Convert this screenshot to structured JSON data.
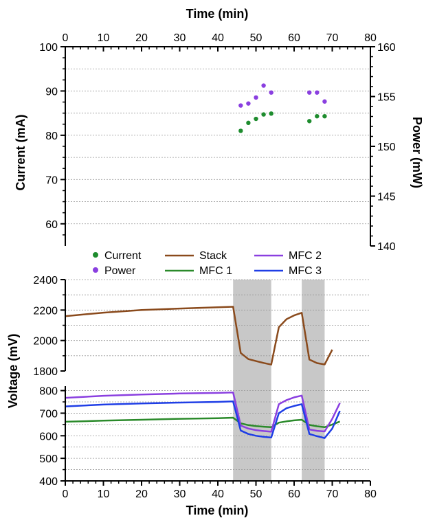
{
  "chart_data": [
    {
      "type": "scatter",
      "xlabel": "Time (min)",
      "ylabel": "Current (mA)",
      "y2label": "Power (mW)",
      "xlim": [
        0,
        80
      ],
      "ylim": [
        55,
        100
      ],
      "y2lim": [
        140,
        160
      ],
      "x_ticks": [
        "0",
        "10",
        "20",
        "30",
        "40",
        "50",
        "60",
        "70",
        "80"
      ],
      "y_ticks": [
        "60",
        "70",
        "80",
        "90",
        "100"
      ],
      "y2_ticks": [
        "140",
        "145",
        "150",
        "155",
        "160"
      ],
      "x_axis_position": "top",
      "grid": true,
      "legend_position": "bottom-left",
      "series": [
        {
          "name": "Current",
          "color": "#1e8c2e",
          "axis": "left",
          "x": [
            46,
            48,
            50,
            52,
            54,
            64,
            66,
            68
          ],
          "y": [
            81,
            82.8,
            83.7,
            84.7,
            84.9,
            83.2,
            84.3,
            84.3
          ]
        },
        {
          "name": "Power",
          "color": "#8a3fe0",
          "axis": "right",
          "x": [
            46,
            48,
            50,
            52,
            54,
            64,
            66,
            68
          ],
          "y": [
            154.1,
            154.3,
            154.9,
            156.1,
            155.4,
            155.4,
            155.4,
            154.5
          ]
        }
      ]
    },
    {
      "type": "line",
      "xlabel": "Time (min)",
      "ylabel": "Voltage (mV)",
      "xlim": [
        0,
        80
      ],
      "x_ticks": [
        "0",
        "10",
        "20",
        "30",
        "40",
        "50",
        "60",
        "70",
        "80"
      ],
      "y_ticks_upper": [
        "1800",
        "2000",
        "2200",
        "2400"
      ],
      "y_ticks_lower": [
        "400",
        "500",
        "600",
        "700",
        "800"
      ],
      "ylim_upper": [
        1800,
        2400
      ],
      "ylim_lower": [
        400,
        820
      ],
      "broken_y_axis": true,
      "grid": true,
      "legend_position": "top",
      "shaded_x_ranges": [
        [
          44,
          54
        ],
        [
          62,
          68
        ]
      ],
      "series": [
        {
          "name": "Stack",
          "color": "#8a4a1c",
          "segment": "upper",
          "x": [
            0,
            10,
            20,
            30,
            40,
            44,
            46,
            48,
            50,
            52,
            54,
            56,
            58,
            60,
            62,
            64,
            66,
            68,
            70
          ],
          "y": [
            2160,
            2183,
            2200,
            2210,
            2218,
            2222,
            1918,
            1878,
            1865,
            1853,
            1842,
            2088,
            2140,
            2165,
            2182,
            1875,
            1852,
            1843,
            1940
          ]
        },
        {
          "name": "MFC 1",
          "color": "#2a8a2a",
          "segment": "lower",
          "x": [
            0,
            10,
            20,
            30,
            40,
            44,
            46,
            48,
            50,
            52,
            54,
            56,
            58,
            60,
            62,
            64,
            66,
            68,
            70,
            72
          ],
          "y": [
            662,
            667,
            671,
            675,
            678,
            680,
            655,
            647,
            643,
            640,
            638,
            658,
            664,
            668,
            671,
            648,
            642,
            638,
            650,
            663
          ]
        },
        {
          "name": "MFC 2",
          "color": "#8a3fe0",
          "segment": "lower",
          "x": [
            0,
            10,
            20,
            30,
            40,
            44,
            46,
            48,
            50,
            52,
            54,
            56,
            58,
            60,
            62,
            64,
            66,
            68,
            70,
            72
          ],
          "y": [
            768,
            777,
            783,
            787,
            790,
            792,
            645,
            632,
            625,
            621,
            618,
            740,
            758,
            770,
            778,
            628,
            622,
            619,
            675,
            745
          ]
        },
        {
          "name": "MFC 3",
          "color": "#1f3ee6",
          "segment": "lower",
          "x": [
            0,
            10,
            20,
            30,
            40,
            44,
            46,
            48,
            50,
            52,
            54,
            56,
            58,
            60,
            62,
            64,
            66,
            68,
            70,
            72
          ],
          "y": [
            730,
            738,
            743,
            747,
            750,
            752,
            623,
            608,
            600,
            595,
            592,
            700,
            722,
            732,
            740,
            608,
            598,
            590,
            632,
            710
          ]
        }
      ]
    }
  ]
}
